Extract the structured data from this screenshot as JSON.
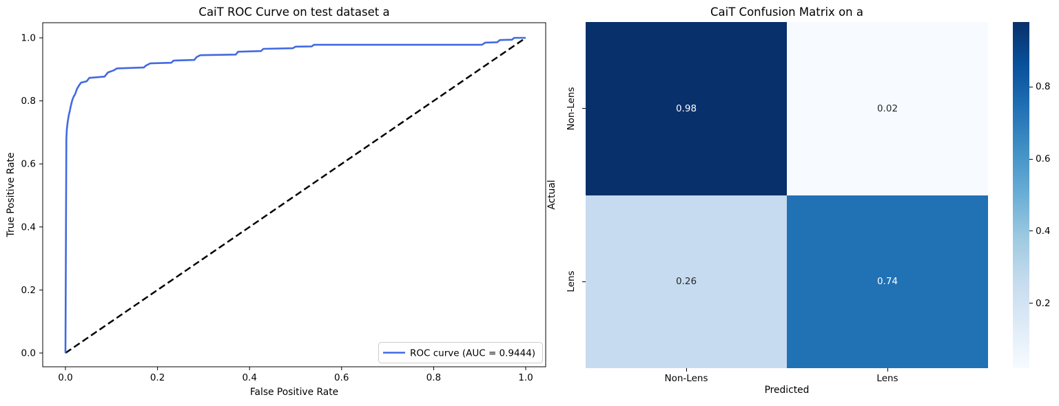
{
  "figure": {
    "background": "#ffffff"
  },
  "roc": {
    "title": "CaiT ROC Curve on test dataset a",
    "xlabel": "False Positive Rate",
    "ylabel": "True Positive Rate",
    "x_ticks": [
      "0.0",
      "0.2",
      "0.4",
      "0.6",
      "0.8",
      "1.0"
    ],
    "y_ticks": [
      "0.0",
      "0.2",
      "0.4",
      "0.6",
      "0.8",
      "1.0"
    ],
    "legend_label": "ROC curve (AUC = 0.9444)",
    "curve_color": "#4169e1",
    "diagonal_color": "#000000"
  },
  "cm": {
    "title": "CaiT Confusion Matrix on a",
    "xlabel": "Predicted",
    "ylabel": "Actual",
    "x_tick_labels": [
      "Non-Lens",
      "Lens"
    ],
    "y_tick_labels": [
      "Non-Lens",
      "Lens"
    ],
    "cells": [
      [
        {
          "v": "0.98",
          "bg": "#08306b",
          "fg": "#ffffff"
        },
        {
          "v": "0.02",
          "bg": "#f7fbff",
          "fg": "#262626"
        }
      ],
      [
        {
          "v": "0.26",
          "bg": "#c6dbef",
          "fg": "#262626"
        },
        {
          "v": "0.74",
          "bg": "#2171b5",
          "fg": "#ffffff"
        }
      ]
    ],
    "colorbar": {
      "ticks": [
        "0.2",
        "0.4",
        "0.6",
        "0.8"
      ],
      "vmin": 0.02,
      "vmax": 0.98,
      "colormap": "Blues"
    }
  },
  "chart_data": [
    {
      "type": "line",
      "title": "CaiT ROC Curve on test dataset a",
      "xlabel": "False Positive Rate",
      "ylabel": "True Positive Rate",
      "xlim": [
        -0.05,
        1.05
      ],
      "ylim": [
        -0.05,
        1.05
      ],
      "grid": false,
      "legend_position": "lower right",
      "auc": 0.9444,
      "series": [
        {
          "name": "ROC curve (AUC = 0.9444)",
          "color": "#4169e1",
          "style": "solid",
          "points": [
            [
              0.0,
              0.0
            ],
            [
              0.002,
              0.68
            ],
            [
              0.003,
              0.71
            ],
            [
              0.005,
              0.734
            ],
            [
              0.007,
              0.753
            ],
            [
              0.009,
              0.765
            ],
            [
              0.012,
              0.786
            ],
            [
              0.015,
              0.803
            ],
            [
              0.018,
              0.814
            ],
            [
              0.021,
              0.821
            ],
            [
              0.025,
              0.838
            ],
            [
              0.03,
              0.85
            ],
            [
              0.034,
              0.858
            ],
            [
              0.046,
              0.862
            ],
            [
              0.052,
              0.873
            ],
            [
              0.085,
              0.877
            ],
            [
              0.092,
              0.89
            ],
            [
              0.105,
              0.897
            ],
            [
              0.112,
              0.903
            ],
            [
              0.17,
              0.906
            ],
            [
              0.175,
              0.912
            ],
            [
              0.184,
              0.919
            ],
            [
              0.23,
              0.921
            ],
            [
              0.235,
              0.928
            ],
            [
              0.28,
              0.93
            ],
            [
              0.285,
              0.939
            ],
            [
              0.293,
              0.945
            ],
            [
              0.37,
              0.947
            ],
            [
              0.375,
              0.956
            ],
            [
              0.425,
              0.958
            ],
            [
              0.43,
              0.965
            ],
            [
              0.494,
              0.967
            ],
            [
              0.5,
              0.972
            ],
            [
              0.535,
              0.973
            ],
            [
              0.54,
              0.978
            ],
            [
              0.905,
              0.978
            ],
            [
              0.912,
              0.985
            ],
            [
              0.938,
              0.986
            ],
            [
              0.944,
              0.993
            ],
            [
              0.97,
              0.994
            ],
            [
              0.975,
              1.0
            ],
            [
              1.0,
              1.0
            ]
          ]
        },
        {
          "name": "chance diagonal",
          "color": "#000000",
          "style": "dashed",
          "points": [
            [
              0.0,
              0.0
            ],
            [
              1.0,
              1.0
            ]
          ]
        }
      ]
    },
    {
      "type": "heatmap",
      "title": "CaiT Confusion Matrix on a",
      "xlabel": "Predicted",
      "ylabel": "Actual",
      "x_categories": [
        "Non-Lens",
        "Lens"
      ],
      "y_categories": [
        "Non-Lens",
        "Lens"
      ],
      "values": [
        [
          0.98,
          0.02
        ],
        [
          0.26,
          0.74
        ]
      ],
      "colormap": "Blues",
      "colorbar_ticks": [
        0.2,
        0.4,
        0.6,
        0.8
      ]
    }
  ]
}
